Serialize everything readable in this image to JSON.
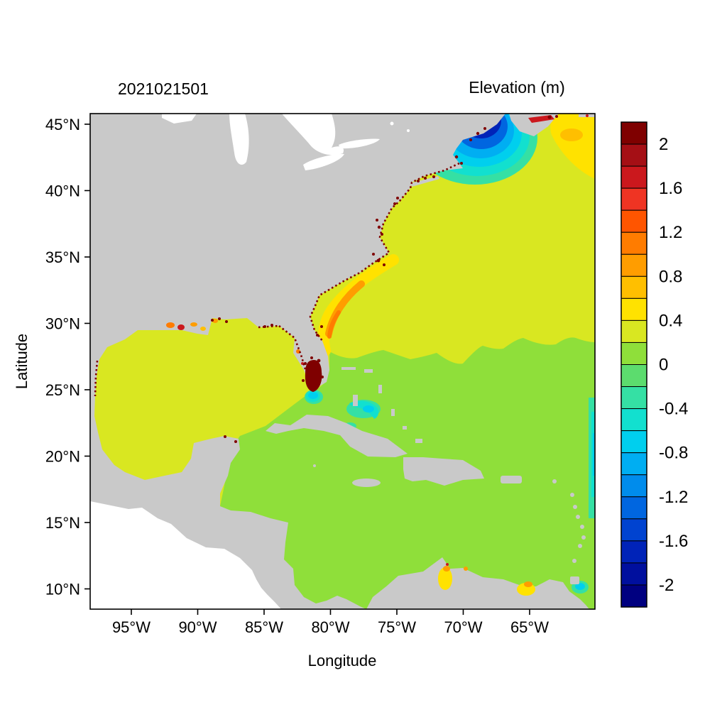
{
  "figure": {
    "left_title": "2021021501",
    "right_title": "Elevation (m)"
  },
  "axes": {
    "x_label": "Longitude",
    "y_label": "Latitude",
    "x_ticks": [
      {
        "label": "95°W",
        "lon": -95
      },
      {
        "label": "90°W",
        "lon": -90
      },
      {
        "label": "85°W",
        "lon": -85
      },
      {
        "label": "80°W",
        "lon": -80
      },
      {
        "label": "75°W",
        "lon": -75
      },
      {
        "label": "70°W",
        "lon": -70
      },
      {
        "label": "65°W",
        "lon": -65
      }
    ],
    "y_ticks": [
      {
        "label": "45°N",
        "lat": 45
      },
      {
        "label": "40°N",
        "lat": 40
      },
      {
        "label": "35°N",
        "lat": 35
      },
      {
        "label": "30°N",
        "lat": 30
      },
      {
        "label": "25°N",
        "lat": 25
      },
      {
        "label": "20°N",
        "lat": 20
      },
      {
        "label": "15°N",
        "lat": 15
      },
      {
        "label": "10°N",
        "lat": 10
      }
    ]
  },
  "colorbar": {
    "units": "m",
    "tick_labels": [
      {
        "label": "2",
        "value": 2
      },
      {
        "label": "1.6",
        "value": 1.6
      },
      {
        "label": "1.2",
        "value": 1.2
      },
      {
        "label": "0.8",
        "value": 0.8
      },
      {
        "label": "0.4",
        "value": 0.4
      },
      {
        "label": "0",
        "value": 0
      },
      {
        "label": "-0.4",
        "value": -0.4
      },
      {
        "label": "-0.8",
        "value": -0.8
      },
      {
        "label": "-1.2",
        "value": -1.2
      },
      {
        "label": "-1.6",
        "value": -1.6
      },
      {
        "label": "-2",
        "value": -2
      }
    ],
    "segments": [
      {
        "min": 2.0,
        "max": 2.2,
        "color": "#7f0000"
      },
      {
        "min": 1.8,
        "max": 2.0,
        "color": "#a50f15"
      },
      {
        "min": 1.6,
        "max": 1.8,
        "color": "#cb181d"
      },
      {
        "min": 1.4,
        "max": 1.6,
        "color": "#ef3423"
      },
      {
        "min": 1.2,
        "max": 1.4,
        "color": "#ff5500"
      },
      {
        "min": 1.0,
        "max": 1.2,
        "color": "#ff7c00"
      },
      {
        "min": 0.8,
        "max": 1.0,
        "color": "#ff9d00"
      },
      {
        "min": 0.6,
        "max": 0.8,
        "color": "#ffbf00"
      },
      {
        "min": 0.4,
        "max": 0.6,
        "color": "#ffe200"
      },
      {
        "min": 0.2,
        "max": 0.4,
        "color": "#d9e721"
      },
      {
        "min": 0.0,
        "max": 0.2,
        "color": "#8fdf3a"
      },
      {
        "min": -0.2,
        "max": 0.0,
        "color": "#5cdc6e"
      },
      {
        "min": -0.4,
        "max": -0.2,
        "color": "#35e0a4"
      },
      {
        "min": -0.6,
        "max": -0.4,
        "color": "#12e0cf"
      },
      {
        "min": -0.8,
        "max": -0.6,
        "color": "#00cfee"
      },
      {
        "min": -1.0,
        "max": -0.8,
        "color": "#00aef2"
      },
      {
        "min": -1.2,
        "max": -1.0,
        "color": "#008cec"
      },
      {
        "min": -1.4,
        "max": -1.2,
        "color": "#0066e0"
      },
      {
        "min": -1.6,
        "max": -1.4,
        "color": "#0043d0"
      },
      {
        "min": -1.8,
        "max": -1.6,
        "color": "#0023b8"
      },
      {
        "min": -2.0,
        "max": -1.8,
        "color": "#000f9e"
      },
      {
        "min": -2.2,
        "max": -2.0,
        "color": "#000080"
      }
    ]
  },
  "colors": {
    "land": "#c9c9c9",
    "lake": "#ffffff",
    "pacific_mask": "#ffffff",
    "ocean_chartreuse": "#d9e721",
    "ocean_green": "#8fdf3a",
    "green_light": "#5cdc6e",
    "mint": "#35e0a4",
    "turquoise": "#12e0cf",
    "cyan": "#00cfee",
    "sky": "#00aef2",
    "blue": "#0066e0",
    "navy": "#0023b8",
    "navy_deep": "#000080",
    "yellow": "#ffe200",
    "amber": "#ffbf00",
    "orange": "#ff9d00",
    "orange_deep": "#ff7c00",
    "red": "#cb181d",
    "maroon": "#7f0000",
    "frame": "#000000"
  },
  "chart_data": {
    "type": "heatmap",
    "title": "Elevation (m)",
    "run_label": "2021021501",
    "xlabel": "Longitude",
    "ylabel": "Latitude",
    "lon_range_deg": [
      -98.1,
      -60.1
    ],
    "lat_range_deg": [
      8.3,
      45.8
    ],
    "x_tick_labels": [
      "95°W",
      "90°W",
      "85°W",
      "80°W",
      "75°W",
      "70°W",
      "65°W"
    ],
    "y_tick_labels": [
      "45°N",
      "40°N",
      "35°N",
      "30°N",
      "25°N",
      "20°N",
      "15°N",
      "10°N"
    ],
    "colorbar_levels_m": [
      -2.2,
      -2,
      -1.8,
      -1.6,
      -1.4,
      -1.2,
      -1,
      -0.8,
      -0.6,
      -0.4,
      -0.2,
      0,
      0.2,
      0.4,
      0.6,
      0.8,
      1,
      1.2,
      1.4,
      1.6,
      1.8,
      2,
      2.2
    ],
    "colorbar_label_step_m": 0.4,
    "legend_position": "right",
    "field_regions": [
      {
        "region": "Open Atlantic north of ~28°N",
        "elevation_m": 0.3
      },
      {
        "region": "Gulf of Mexico interior",
        "elevation_m": 0.3
      },
      {
        "region": "Caribbean Sea and Atlantic south of ~28°N",
        "elevation_m": 0.1
      },
      {
        "region": "Gulf of Maine core (low)",
        "elevation_m": -2.0
      },
      {
        "region": "Gulf of Maine fringe",
        "elevation_m": -0.6
      },
      {
        "region": "Scotian Shelf / NE corner",
        "elevation_m": 0.5
      },
      {
        "region": "Bay of Fundy streak",
        "elevation_m": 1.8
      },
      {
        "region": "Georgia-Carolinas shelf band",
        "elevation_m": 0.7
      },
      {
        "region": "South Florida interior cells (high)",
        "elevation_m": 2.2
      },
      {
        "region": "Florida Bay spot",
        "elevation_m": -0.7
      },
      {
        "region": "Louisiana coastal cells",
        "elevation_m": 1.0
      },
      {
        "region": "Crescent south of Bahamas",
        "elevation_m": -0.5
      },
      {
        "region": "Eastern boundary strip near 61°W",
        "elevation_m": -0.4
      },
      {
        "region": "Lake Maracaibo / Venezuela coast spots",
        "elevation_m": 0.6
      },
      {
        "region": "Coastal wet-dry speckle cells (many coasts)",
        "elevation_m": 2.2
      }
    ]
  }
}
